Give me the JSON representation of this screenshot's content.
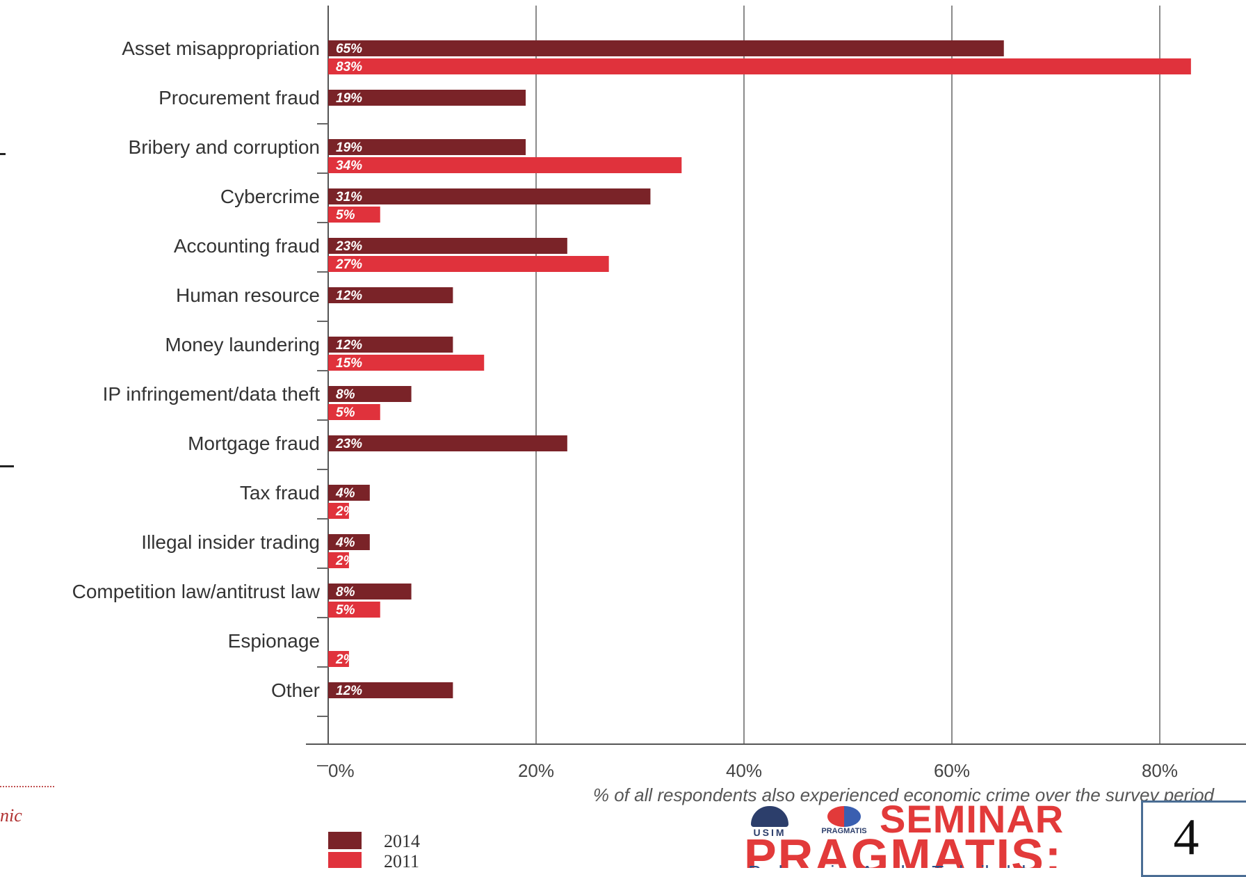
{
  "chart_data": {
    "type": "bar",
    "orientation": "horizontal",
    "categories": [
      "Asset misappropriation",
      "Procurement fraud",
      "Bribery and corruption",
      "Cybercrime",
      "Accounting fraud",
      "Human resource",
      "Money laundering",
      "IP infringement/data theft",
      "Mortgage fraud",
      "Tax fraud",
      "Illegal insider trading",
      "Competition law/antitrust law",
      "Espionage",
      "Other"
    ],
    "series": [
      {
        "name": "2014",
        "color": "#7a2328",
        "values": [
          65,
          19,
          19,
          31,
          23,
          12,
          12,
          8,
          23,
          4,
          4,
          8,
          null,
          12
        ]
      },
      {
        "name": "2011",
        "color": "#e0323c",
        "values": [
          83,
          null,
          34,
          5,
          27,
          null,
          15,
          5,
          null,
          2,
          2,
          5,
          2,
          null
        ]
      }
    ],
    "xlabel": "% of all respondents also experienced economic crime over the survey period",
    "xlim": [
      0,
      85
    ],
    "xticks": [
      0,
      20,
      40,
      60,
      80
    ],
    "xtick_labels": [
      "0%",
      "20%",
      "40%",
      "60%",
      "80%"
    ],
    "value_suffix": "%",
    "grid": "vertical",
    "legend_position": "bottom-left"
  },
  "slide": {
    "number": "4",
    "logo_seminar": "SEMINAR",
    "logo_pragmatis": "PRAGMATIS:",
    "logo_tagline": "Perkongsian Amalan Terbaik dalam",
    "logo_usim": "USIM",
    "logo_prag_small": "PRAGMATIS",
    "left_fragment": "nic"
  }
}
